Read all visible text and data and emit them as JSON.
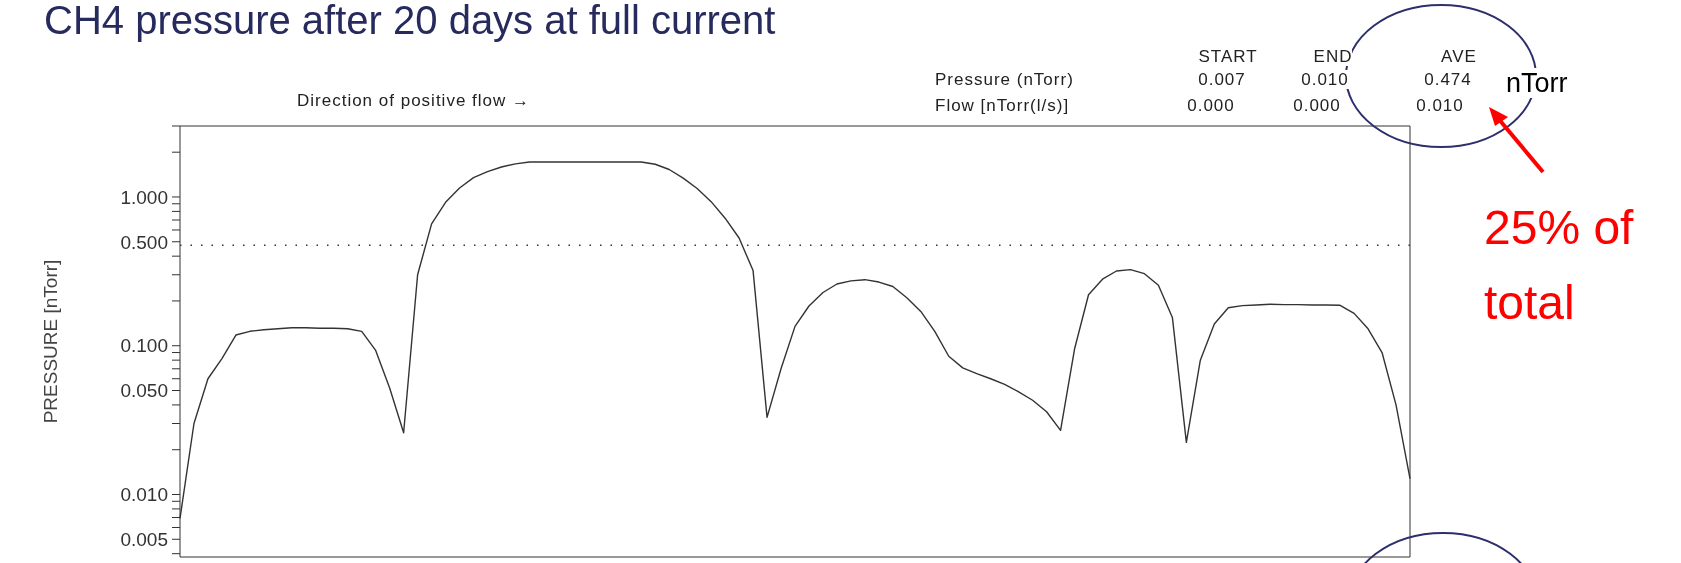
{
  "chart_data": {
    "type": "line",
    "title": "CH4 pressure after 20 days at full current",
    "ylabel": "PRESSURE [nTorr]",
    "categories": [
      null,
      null,
      null,
      null,
      null,
      null,
      null,
      null,
      null,
      null,
      null,
      null,
      null,
      null,
      null,
      null,
      null,
      null,
      null,
      null,
      null,
      null,
      null,
      null,
      null,
      null,
      null,
      null,
      null,
      null,
      null,
      null,
      null,
      null,
      null,
      null,
      null,
      null,
      null,
      null,
      null,
      null,
      null,
      null,
      null,
      null,
      null,
      null,
      null,
      null,
      null,
      null,
      null,
      null,
      null,
      null,
      null,
      null,
      null,
      null,
      null,
      null,
      null,
      null,
      null,
      null,
      null,
      null,
      null,
      null,
      null,
      null,
      null,
      null,
      null,
      null,
      null,
      null,
      null,
      null,
      null,
      null,
      null,
      null,
      null,
      null,
      null,
      null,
      null
    ],
    "values": [
      0.0069,
      0.03,
      0.06,
      0.082,
      0.118,
      0.125,
      0.128,
      0.13,
      0.132,
      0.132,
      0.131,
      0.131,
      0.13,
      0.125,
      0.093,
      0.052,
      0.026,
      0.3,
      0.66,
      0.92,
      1.15,
      1.35,
      1.48,
      1.59,
      1.67,
      1.72,
      1.72,
      1.72,
      1.72,
      1.72,
      1.72,
      1.72,
      1.72,
      1.72,
      1.66,
      1.53,
      1.34,
      1.14,
      0.93,
      0.72,
      0.53,
      0.32,
      0.033,
      0.07,
      0.135,
      0.185,
      0.228,
      0.26,
      0.273,
      0.278,
      0.268,
      0.25,
      0.21,
      0.17,
      0.125,
      0.085,
      0.071,
      0.065,
      0.06,
      0.055,
      0.049,
      0.043,
      0.036,
      0.027,
      0.095,
      0.22,
      0.28,
      0.318,
      0.325,
      0.305,
      0.255,
      0.155,
      0.0224,
      0.08,
      0.14,
      0.18,
      0.186,
      0.188,
      0.19,
      0.189,
      0.189,
      0.188,
      0.188,
      0.187,
      0.165,
      0.13,
      0.09,
      0.04,
      0.0128
    ],
    "color": "#333333",
    "ylim": [
      0.0038,
      3.0
    ],
    "yticks": [
      {
        "value": 0.004,
        "label": null
      },
      {
        "value": 0.005,
        "label": "0.005"
      },
      {
        "value": 0.006,
        "label": null
      },
      {
        "value": 0.007,
        "label": null
      },
      {
        "value": 0.008,
        "label": null
      },
      {
        "value": 0.009,
        "label": null
      },
      {
        "value": 0.01,
        "label": "0.010"
      },
      {
        "value": 0.02,
        "label": null
      },
      {
        "value": 0.03,
        "label": null
      },
      {
        "value": 0.04,
        "label": null
      },
      {
        "value": 0.05,
        "label": "0.050"
      },
      {
        "value": 0.06,
        "label": null
      },
      {
        "value": 0.07,
        "label": null
      },
      {
        "value": 0.08,
        "label": null
      },
      {
        "value": 0.09,
        "label": null
      },
      {
        "value": 0.1,
        "label": "0.100"
      },
      {
        "value": 0.2,
        "label": null
      },
      {
        "value": 0.3,
        "label": null
      },
      {
        "value": 0.4,
        "label": null
      },
      {
        "value": 0.5,
        "label": "0.500"
      },
      {
        "value": 0.6,
        "label": null
      },
      {
        "value": 0.7,
        "label": null
      },
      {
        "value": 0.8,
        "label": null
      },
      {
        "value": 0.9,
        "label": null
      },
      {
        "value": 1,
        "label": "1.000"
      },
      {
        "value": 2,
        "label": null
      },
      {
        "value": 3,
        "label": null
      }
    ],
    "log": true,
    "tick_labels": "y",
    "ref_lines": [
      {
        "axis": "y",
        "value": 0.474,
        "color": "#333333",
        "line_style": "dotted"
      }
    ],
    "annotations": [
      "Direction of positive flow →",
      "START",
      "END",
      "AVE",
      "Pressure (nTorr)",
      "0.007",
      "0.010",
      "0.474",
      "Flow [nTorr(l/s)]",
      "0.000",
      "0.000",
      "0.010",
      "nTorr",
      "25% of total"
    ]
  }
}
